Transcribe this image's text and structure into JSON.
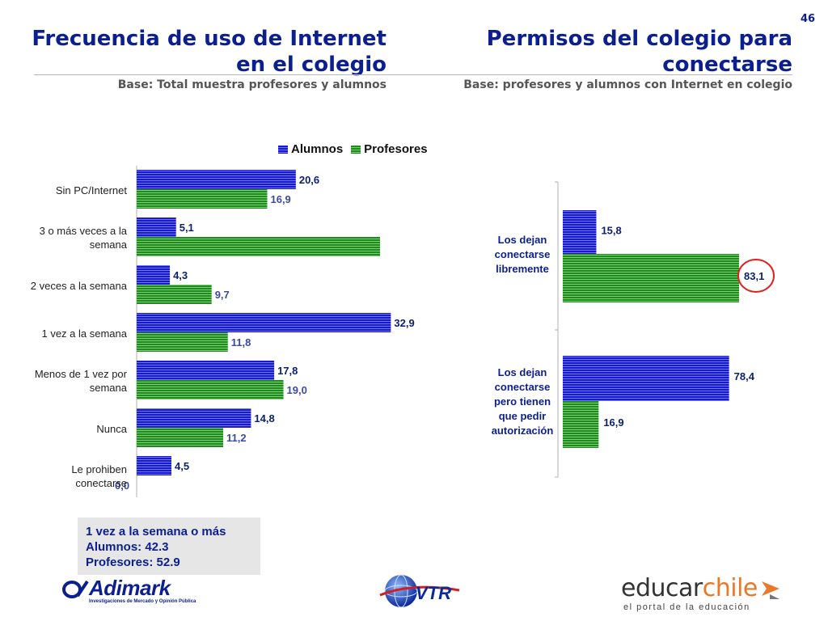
{
  "page_number": "46",
  "left": {
    "title_line1": "Frecuencia de uso de Internet",
    "title_line2": "en el colegio",
    "base": "Base: Total muestra profesores y alumnos"
  },
  "right": {
    "title_line1": "Permisos  del colegio para",
    "title_line2": "conectarse",
    "base": "Base: profesores y alumnos con Internet en colegio"
  },
  "legend": [
    "Alumnos",
    "Profesores"
  ],
  "note": {
    "line1": "1 vez a la semana o más",
    "line2": "Alumnos: 42.3",
    "line3": "Profesores: 52.9"
  },
  "logos": {
    "adimark_name": "Adimark",
    "adimark_tagline": "Investigaciones de Mercado y Opinión Pública",
    "vtr": "VTR",
    "educar_a": "educar",
    "educar_b": "chile",
    "educar_tagline": "el portal de la educación"
  },
  "colors": {
    "title": "#0b1f8f",
    "alumnos": "#1a1acc",
    "profesores": "#1f8a1f",
    "highlight_circle": "#e02020"
  },
  "chart_data": [
    {
      "type": "bar",
      "orientation": "horizontal",
      "categories": [
        [
          "Sin PC/Internet"
        ],
        [
          "3 o más veces a la",
          "semana"
        ],
        [
          "2 veces a la semana"
        ],
        [
          "1 vez a la semana"
        ],
        [
          "Menos de 1 vez por",
          "semana"
        ],
        [
          "Nunca"
        ],
        [
          "Le prohiben",
          "conectarse"
        ]
      ],
      "series": [
        {
          "name": "Alumnos",
          "values": [
            20.6,
            5.1,
            4.3,
            32.9,
            17.8,
            14.8,
            4.5
          ],
          "labels": [
            "20,6",
            "5,1",
            "4,3",
            "32,9",
            "17,8",
            "14,8",
            "4,5"
          ]
        },
        {
          "name": "Profesores",
          "values": [
            16.9,
            31.5,
            9.7,
            11.8,
            19.0,
            11.2,
            0.0
          ],
          "labels": [
            "16,9",
            "",
            "9,7",
            "11,8",
            "19,0",
            "11,2",
            "0,0"
          ]
        }
      ],
      "xlim": [
        0,
        38
      ],
      "legend_position": "top"
    },
    {
      "type": "bar",
      "orientation": "horizontal",
      "categories": [
        [
          "Los dejan",
          "conectarse",
          "libremente"
        ],
        [
          "Los dejan",
          "conectarse",
          "pero tienen",
          "que pedir",
          "autorización"
        ]
      ],
      "series": [
        {
          "name": "Alumnos",
          "values": [
            15.8,
            78.4
          ],
          "labels": [
            "15,8",
            "78,4"
          ]
        },
        {
          "name": "Profesores",
          "values": [
            83.1,
            16.9
          ],
          "labels": [
            "83,1",
            "16,9"
          ]
        }
      ],
      "xlim": [
        0,
        100
      ],
      "highlighted_value": "83,1"
    }
  ]
}
